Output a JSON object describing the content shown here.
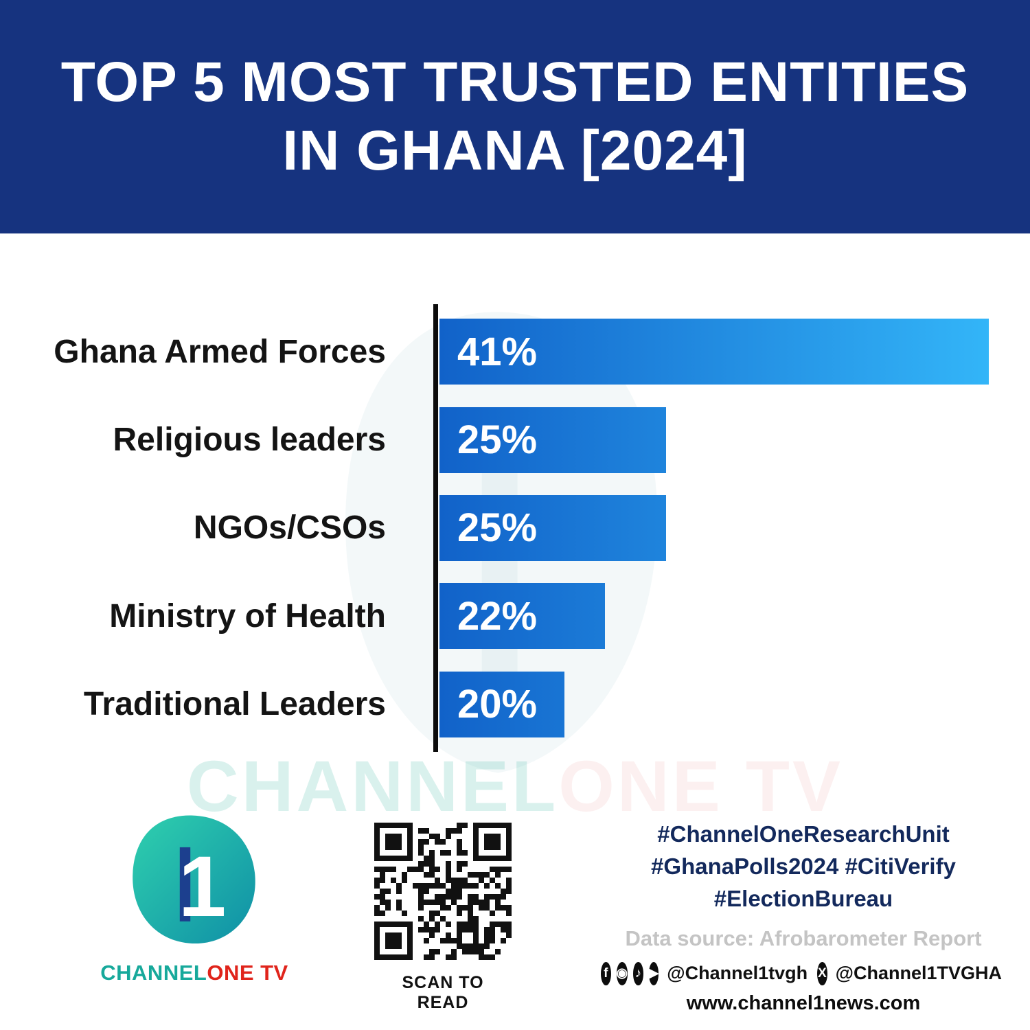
{
  "colors": {
    "header_bg": "#16337f",
    "bar_gradient_start": "#1162c9",
    "bar_gradient_end": "#33b5f8",
    "hashtag_text": "#13295c",
    "logo_teal": "#17a99b",
    "logo_red": "#e0241b"
  },
  "header": {
    "title_line1": "TOP 5 MOST TRUSTED ENTITIES",
    "title_line2": "IN GHANA [2024]"
  },
  "chart_data": {
    "type": "bar",
    "orientation": "horizontal",
    "title": "TOP 5 MOST TRUSTED ENTITIES IN GHANA [2024]",
    "categories": [
      "Ghana Armed Forces",
      "Religious leaders",
      "NGOs/CSOs",
      "Ministry of Health",
      "Traditional Leaders"
    ],
    "values": [
      41,
      25,
      25,
      22,
      20
    ],
    "value_labels": [
      "41%",
      "25%",
      "25%",
      "22%",
      "20%"
    ],
    "unit": "%",
    "xaxis_display_range": [
      13.8,
      41
    ],
    "grid": false,
    "legend": false,
    "bar_color": "blue gradient left-to-right"
  },
  "watermark": {
    "part1": "CHANNEL",
    "part2": "ONE TV"
  },
  "footer": {
    "logo": {
      "numeral": "1",
      "wordmark_part1": "CHANNEL",
      "wordmark_part2": "ONE TV"
    },
    "qr_caption": "SCAN TO READ",
    "hashtags": [
      "#ChannelOneResearchUnit",
      "#GhanaPolls2024 #CitiVerify",
      "#ElectionBureau"
    ],
    "data_source": "Data source: Afrobarometer Report",
    "social": {
      "handle_primary": "@Channel1tvgh",
      "handle_x": "@Channel1TVGHA"
    },
    "website": "www.channel1news.com"
  }
}
